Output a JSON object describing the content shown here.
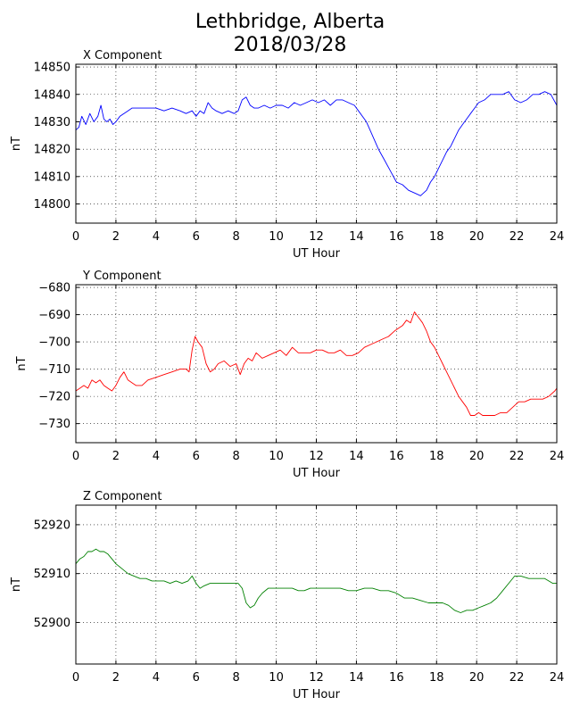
{
  "figure": {
    "title_line1": "Lethbridge, Alberta",
    "title_line2": "2018/03/28"
  },
  "chart_data": [
    {
      "type": "line",
      "title": "X Component",
      "xlabel": "UT Hour",
      "ylabel": "nT",
      "xlim": [
        0,
        24
      ],
      "ylim": [
        14793,
        14851
      ],
      "xticks": [
        0,
        2,
        4,
        6,
        8,
        10,
        12,
        14,
        16,
        18,
        20,
        22,
        24
      ],
      "yticks": [
        14800,
        14810,
        14820,
        14830,
        14840,
        14850
      ],
      "grid": true,
      "series": [
        {
          "color": "#0000ff",
          "x": [
            0,
            0.15,
            0.3,
            0.5,
            0.7,
            0.9,
            1.1,
            1.25,
            1.4,
            1.55,
            1.7,
            1.85,
            2.0,
            2.2,
            2.4,
            2.6,
            2.8,
            3.0,
            3.3,
            3.6,
            4.0,
            4.4,
            4.8,
            5.2,
            5.5,
            5.8,
            6.0,
            6.2,
            6.4,
            6.6,
            6.8,
            7.0,
            7.3,
            7.6,
            7.9,
            8.1,
            8.3,
            8.5,
            8.7,
            8.9,
            9.1,
            9.4,
            9.7,
            10.0,
            10.3,
            10.6,
            10.9,
            11.2,
            11.5,
            11.8,
            12.1,
            12.4,
            12.7,
            13.0,
            13.3,
            13.6,
            13.9,
            14.2,
            14.5,
            14.8,
            15.1,
            15.4,
            15.7,
            16.0,
            16.3,
            16.6,
            16.9,
            17.2,
            17.5,
            17.7,
            17.9,
            18.1,
            18.3,
            18.5,
            18.7,
            18.9,
            19.1,
            19.3,
            19.5,
            19.7,
            19.9,
            20.1,
            20.4,
            20.7,
            21.0,
            21.3,
            21.6,
            21.9,
            22.2,
            22.5,
            22.8,
            23.1,
            23.4,
            23.7,
            24.0
          ],
          "y": [
            14827,
            14828,
            14832,
            14829,
            14833,
            14830,
            14832,
            14836,
            14831,
            14830,
            14831,
            14829,
            14830,
            14832,
            14833,
            14834,
            14835,
            14835,
            14835,
            14835,
            14835,
            14834,
            14835,
            14834,
            14833,
            14834,
            14832,
            14834,
            14833,
            14837,
            14835,
            14834,
            14833,
            14834,
            14833,
            14834,
            14838,
            14839,
            14836,
            14835,
            14835,
            14836,
            14835,
            14836,
            14836,
            14835,
            14837,
            14836,
            14837,
            14838,
            14837,
            14838,
            14836,
            14838,
            14838,
            14837,
            14836,
            14833,
            14830,
            14825,
            14820,
            14816,
            14812,
            14808,
            14807,
            14805,
            14804,
            14803,
            14805,
            14808,
            14810,
            14813,
            14816,
            14819,
            14821,
            14824,
            14827,
            14829,
            14831,
            14833,
            14835,
            14837,
            14838,
            14840,
            14840,
            14840,
            14841,
            14838,
            14837,
            14838,
            14840,
            14840,
            14841,
            14840,
            14836
          ]
        }
      ]
    },
    {
      "type": "line",
      "title": "Y Component",
      "xlabel": "UT Hour",
      "ylabel": "nT",
      "xlim": [
        0,
        24
      ],
      "ylim": [
        -737,
        -679
      ],
      "xticks": [
        0,
        2,
        4,
        6,
        8,
        10,
        12,
        14,
        16,
        18,
        20,
        22,
        24
      ],
      "yticks": [
        -680,
        -690,
        -700,
        -710,
        -720,
        -730
      ],
      "ytick_labels": [
        "−680",
        "−690",
        "−700",
        "−710",
        "−720",
        "−730"
      ],
      "grid": true,
      "series": [
        {
          "color": "#ff0000",
          "x": [
            0,
            0.2,
            0.4,
            0.6,
            0.8,
            1.0,
            1.2,
            1.4,
            1.6,
            1.8,
            2.0,
            2.2,
            2.4,
            2.6,
            2.8,
            3.0,
            3.3,
            3.6,
            4.0,
            4.4,
            4.8,
            5.2,
            5.5,
            5.65,
            5.8,
            5.95,
            6.1,
            6.3,
            6.5,
            6.7,
            6.9,
            7.1,
            7.4,
            7.7,
            8.0,
            8.2,
            8.4,
            8.6,
            8.8,
            9.0,
            9.3,
            9.6,
            9.9,
            10.2,
            10.5,
            10.8,
            11.1,
            11.4,
            11.7,
            12.0,
            12.3,
            12.6,
            12.9,
            13.2,
            13.5,
            13.8,
            14.1,
            14.4,
            14.7,
            15.0,
            15.3,
            15.6,
            15.9,
            16.1,
            16.3,
            16.5,
            16.7,
            16.9,
            17.1,
            17.3,
            17.5,
            17.7,
            17.9,
            18.1,
            18.3,
            18.5,
            18.7,
            18.9,
            19.1,
            19.3,
            19.5,
            19.7,
            19.9,
            20.1,
            20.3,
            20.6,
            20.9,
            21.2,
            21.5,
            21.8,
            22.1,
            22.4,
            22.7,
            23.0,
            23.3,
            23.6,
            23.9,
            24.0
          ],
          "y": [
            -718,
            -717,
            -716,
            -717,
            -714,
            -715,
            -714,
            -716,
            -717,
            -718,
            -716,
            -713,
            -711,
            -714,
            -715,
            -716,
            -716,
            -714,
            -713,
            -712,
            -711,
            -710,
            -710,
            -711,
            -703,
            -698,
            -700,
            -702,
            -708,
            -711,
            -710,
            -708,
            -707,
            -709,
            -708,
            -712,
            -708,
            -706,
            -707,
            -704,
            -706,
            -705,
            -704,
            -703,
            -705,
            -702,
            -704,
            -704,
            -704,
            -703,
            -703,
            -704,
            -704,
            -703,
            -705,
            -705,
            -704,
            -702,
            -701,
            -700,
            -699,
            -698,
            -696,
            -695,
            -694,
            -692,
            -693,
            -689,
            -691,
            -693,
            -696,
            -700,
            -702,
            -705,
            -708,
            -711,
            -714,
            -717,
            -720,
            -722,
            -724,
            -727,
            -727,
            -726,
            -727,
            -727,
            -727,
            -726,
            -726,
            -724,
            -722,
            -722,
            -721,
            -721,
            -721,
            -720,
            -718,
            -717
          ]
        }
      ]
    },
    {
      "type": "line",
      "title": "Z Component",
      "xlabel": "UT Hour",
      "ylabel": "nT",
      "xlim": [
        0,
        24
      ],
      "ylim": [
        52891.5,
        52924
      ],
      "xticks": [
        0,
        2,
        4,
        6,
        8,
        10,
        12,
        14,
        16,
        18,
        20,
        22,
        24
      ],
      "yticks": [
        52900,
        52910,
        52920
      ],
      "grid": true,
      "series": [
        {
          "color": "#008000",
          "x": [
            0,
            0.2,
            0.4,
            0.6,
            0.8,
            1.0,
            1.2,
            1.4,
            1.6,
            1.8,
            2.0,
            2.3,
            2.6,
            2.9,
            3.2,
            3.5,
            3.8,
            4.1,
            4.4,
            4.7,
            5.0,
            5.3,
            5.6,
            5.8,
            6.0,
            6.2,
            6.4,
            6.7,
            7.0,
            7.3,
            7.6,
            7.9,
            8.1,
            8.3,
            8.5,
            8.7,
            8.9,
            9.1,
            9.3,
            9.6,
            9.9,
            10.2,
            10.5,
            10.8,
            11.1,
            11.4,
            11.7,
            12.0,
            12.4,
            12.8,
            13.2,
            13.6,
            14.0,
            14.4,
            14.8,
            15.2,
            15.6,
            16.0,
            16.4,
            16.8,
            17.2,
            17.6,
            18.0,
            18.3,
            18.6,
            18.9,
            19.2,
            19.5,
            19.8,
            20.1,
            20.4,
            20.7,
            21.0,
            21.3,
            21.6,
            21.9,
            22.2,
            22.6,
            23.0,
            23.4,
            23.8,
            24.0
          ],
          "y": [
            52912,
            52913,
            52913.5,
            52914.5,
            52914.5,
            52915,
            52914.5,
            52914.5,
            52914,
            52913,
            52912,
            52911,
            52910,
            52909.5,
            52909,
            52909,
            52908.5,
            52908.5,
            52908.5,
            52908,
            52908.5,
            52908,
            52908.5,
            52909.5,
            52908,
            52907,
            52907.5,
            52908,
            52908,
            52908,
            52908,
            52908,
            52908,
            52907,
            52904,
            52903,
            52903.5,
            52905,
            52906,
            52907,
            52907,
            52907,
            52907,
            52907,
            52906.5,
            52906.5,
            52907,
            52907,
            52907,
            52907,
            52907,
            52906.5,
            52906.5,
            52907,
            52907,
            52906.5,
            52906.5,
            52906,
            52905,
            52905,
            52904.5,
            52904,
            52904,
            52904,
            52903.5,
            52902.5,
            52902,
            52902.5,
            52902.5,
            52903,
            52903.5,
            52904,
            52905,
            52906.5,
            52908,
            52909.5,
            52909.5,
            52909,
            52909,
            52909,
            52908,
            52908
          ]
        }
      ]
    }
  ]
}
